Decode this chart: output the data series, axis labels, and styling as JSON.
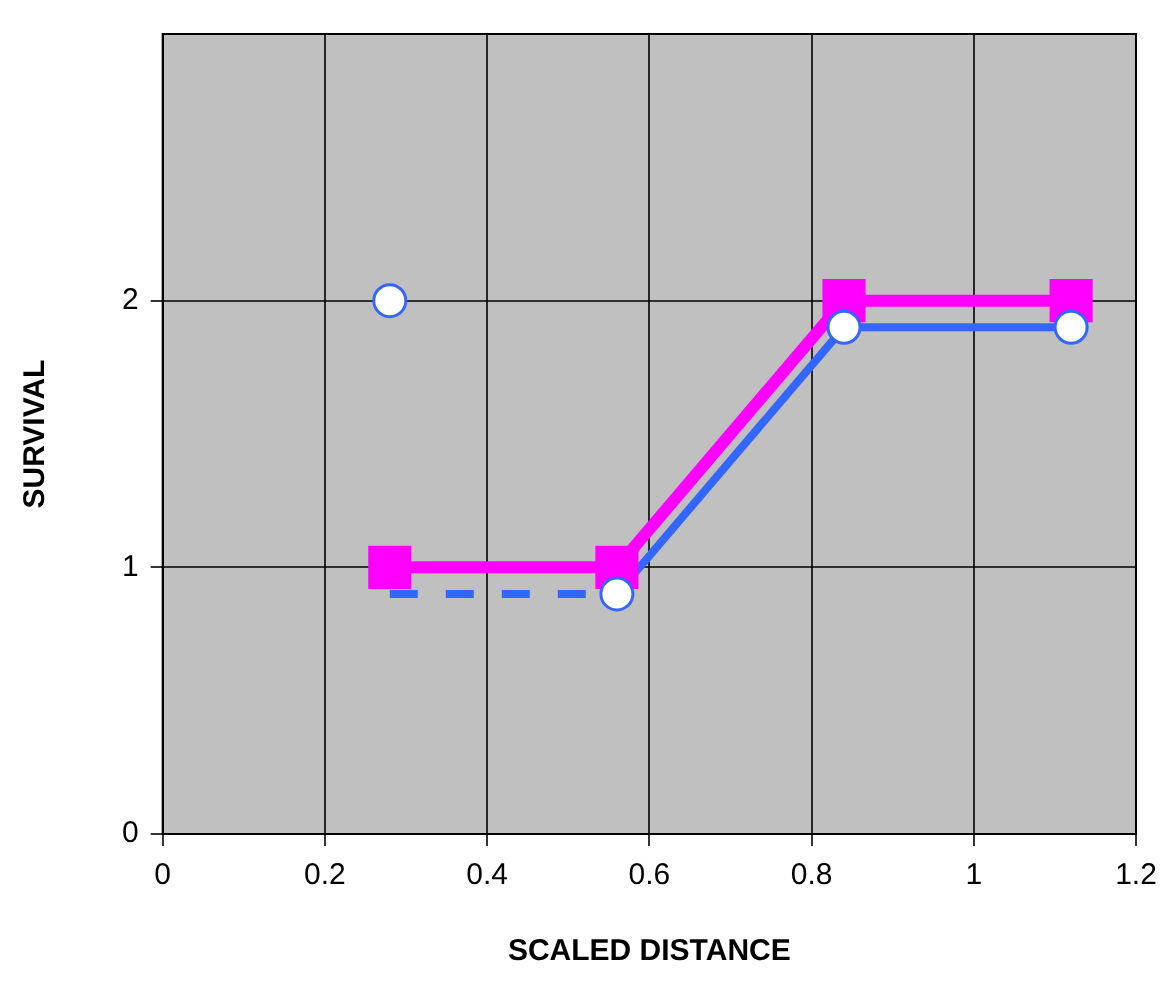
{
  "chart_data": {
    "type": "line",
    "xlabel": "SCALED DISTANCE",
    "ylabel": "SURVIVAL",
    "xlim": [
      0,
      1.2
    ],
    "xticks": [
      0,
      0.2,
      0.4,
      0.6,
      0.8,
      1,
      1.2
    ],
    "ylim": [
      0,
      3
    ],
    "yticks": [
      0,
      1,
      2
    ],
    "grid": true,
    "legend": false,
    "series": [
      {
        "type": "line",
        "color": "#3366ff",
        "x": [
          0.28,
          0.56
        ],
        "values": [
          0.9,
          0.9
        ],
        "line_style": "dashed",
        "marker": "none"
      },
      {
        "type": "line",
        "color": "#3366ff",
        "x": [
          0.56,
          0.84,
          1.12
        ],
        "values": [
          0.9,
          1.9,
          1.9
        ],
        "line_style": "solid",
        "marker": "none"
      },
      {
        "type": "line",
        "color": "#ff00ff",
        "x": [
          0.28,
          0.56,
          0.84,
          1.12
        ],
        "values": [
          1,
          1,
          2,
          2
        ],
        "line_style": "solid",
        "marker": "square"
      },
      {
        "type": "scatter",
        "color": "#3366ff",
        "x": [
          0.28,
          0.56,
          0.84,
          1.12
        ],
        "values": [
          2,
          0.9,
          1.9,
          1.9
        ],
        "marker": "circle"
      }
    ]
  }
}
